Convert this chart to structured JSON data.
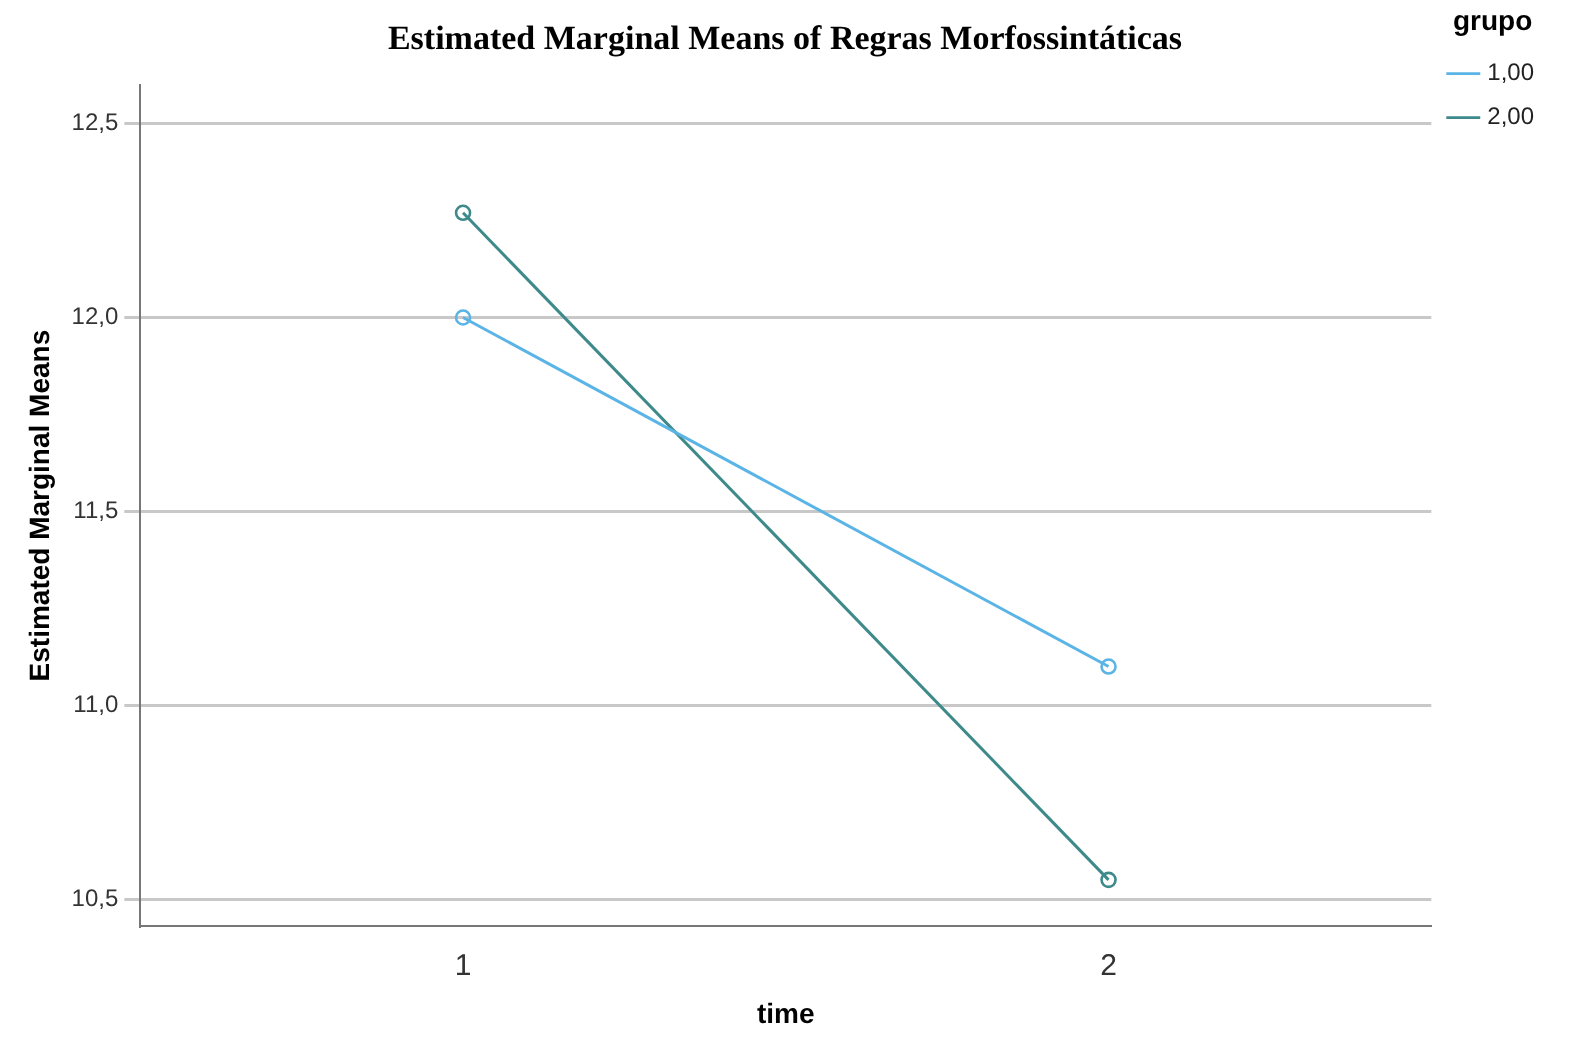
{
  "chart_data": {
    "type": "line",
    "title": "Estimated Marginal Means of Regras Morfossintáticas",
    "xlabel": "time",
    "ylabel": "Estimated Marginal Means",
    "legend_title": "grupo",
    "legend": "top right",
    "categories": [
      "1",
      "2"
    ],
    "series": [
      {
        "name": "1,00",
        "color": "#5ab4e6",
        "values": [
          12.0,
          11.1
        ]
      },
      {
        "name": "2,00",
        "color": "#3e8a8a",
        "values": [
          12.27,
          10.55
        ]
      }
    ],
    "ylim": [
      10.43,
      12.6
    ],
    "yticks": [
      {
        "value": 10.5,
        "label": "10,5"
      },
      {
        "value": 11,
        "label": "11,0"
      },
      {
        "value": 11.5,
        "label": "11,5"
      },
      {
        "value": 12,
        "label": "12,0"
      },
      {
        "value": 12.5,
        "label": "12,5"
      }
    ],
    "grid": "y",
    "marker": "circle",
    "line_style": "solid"
  }
}
